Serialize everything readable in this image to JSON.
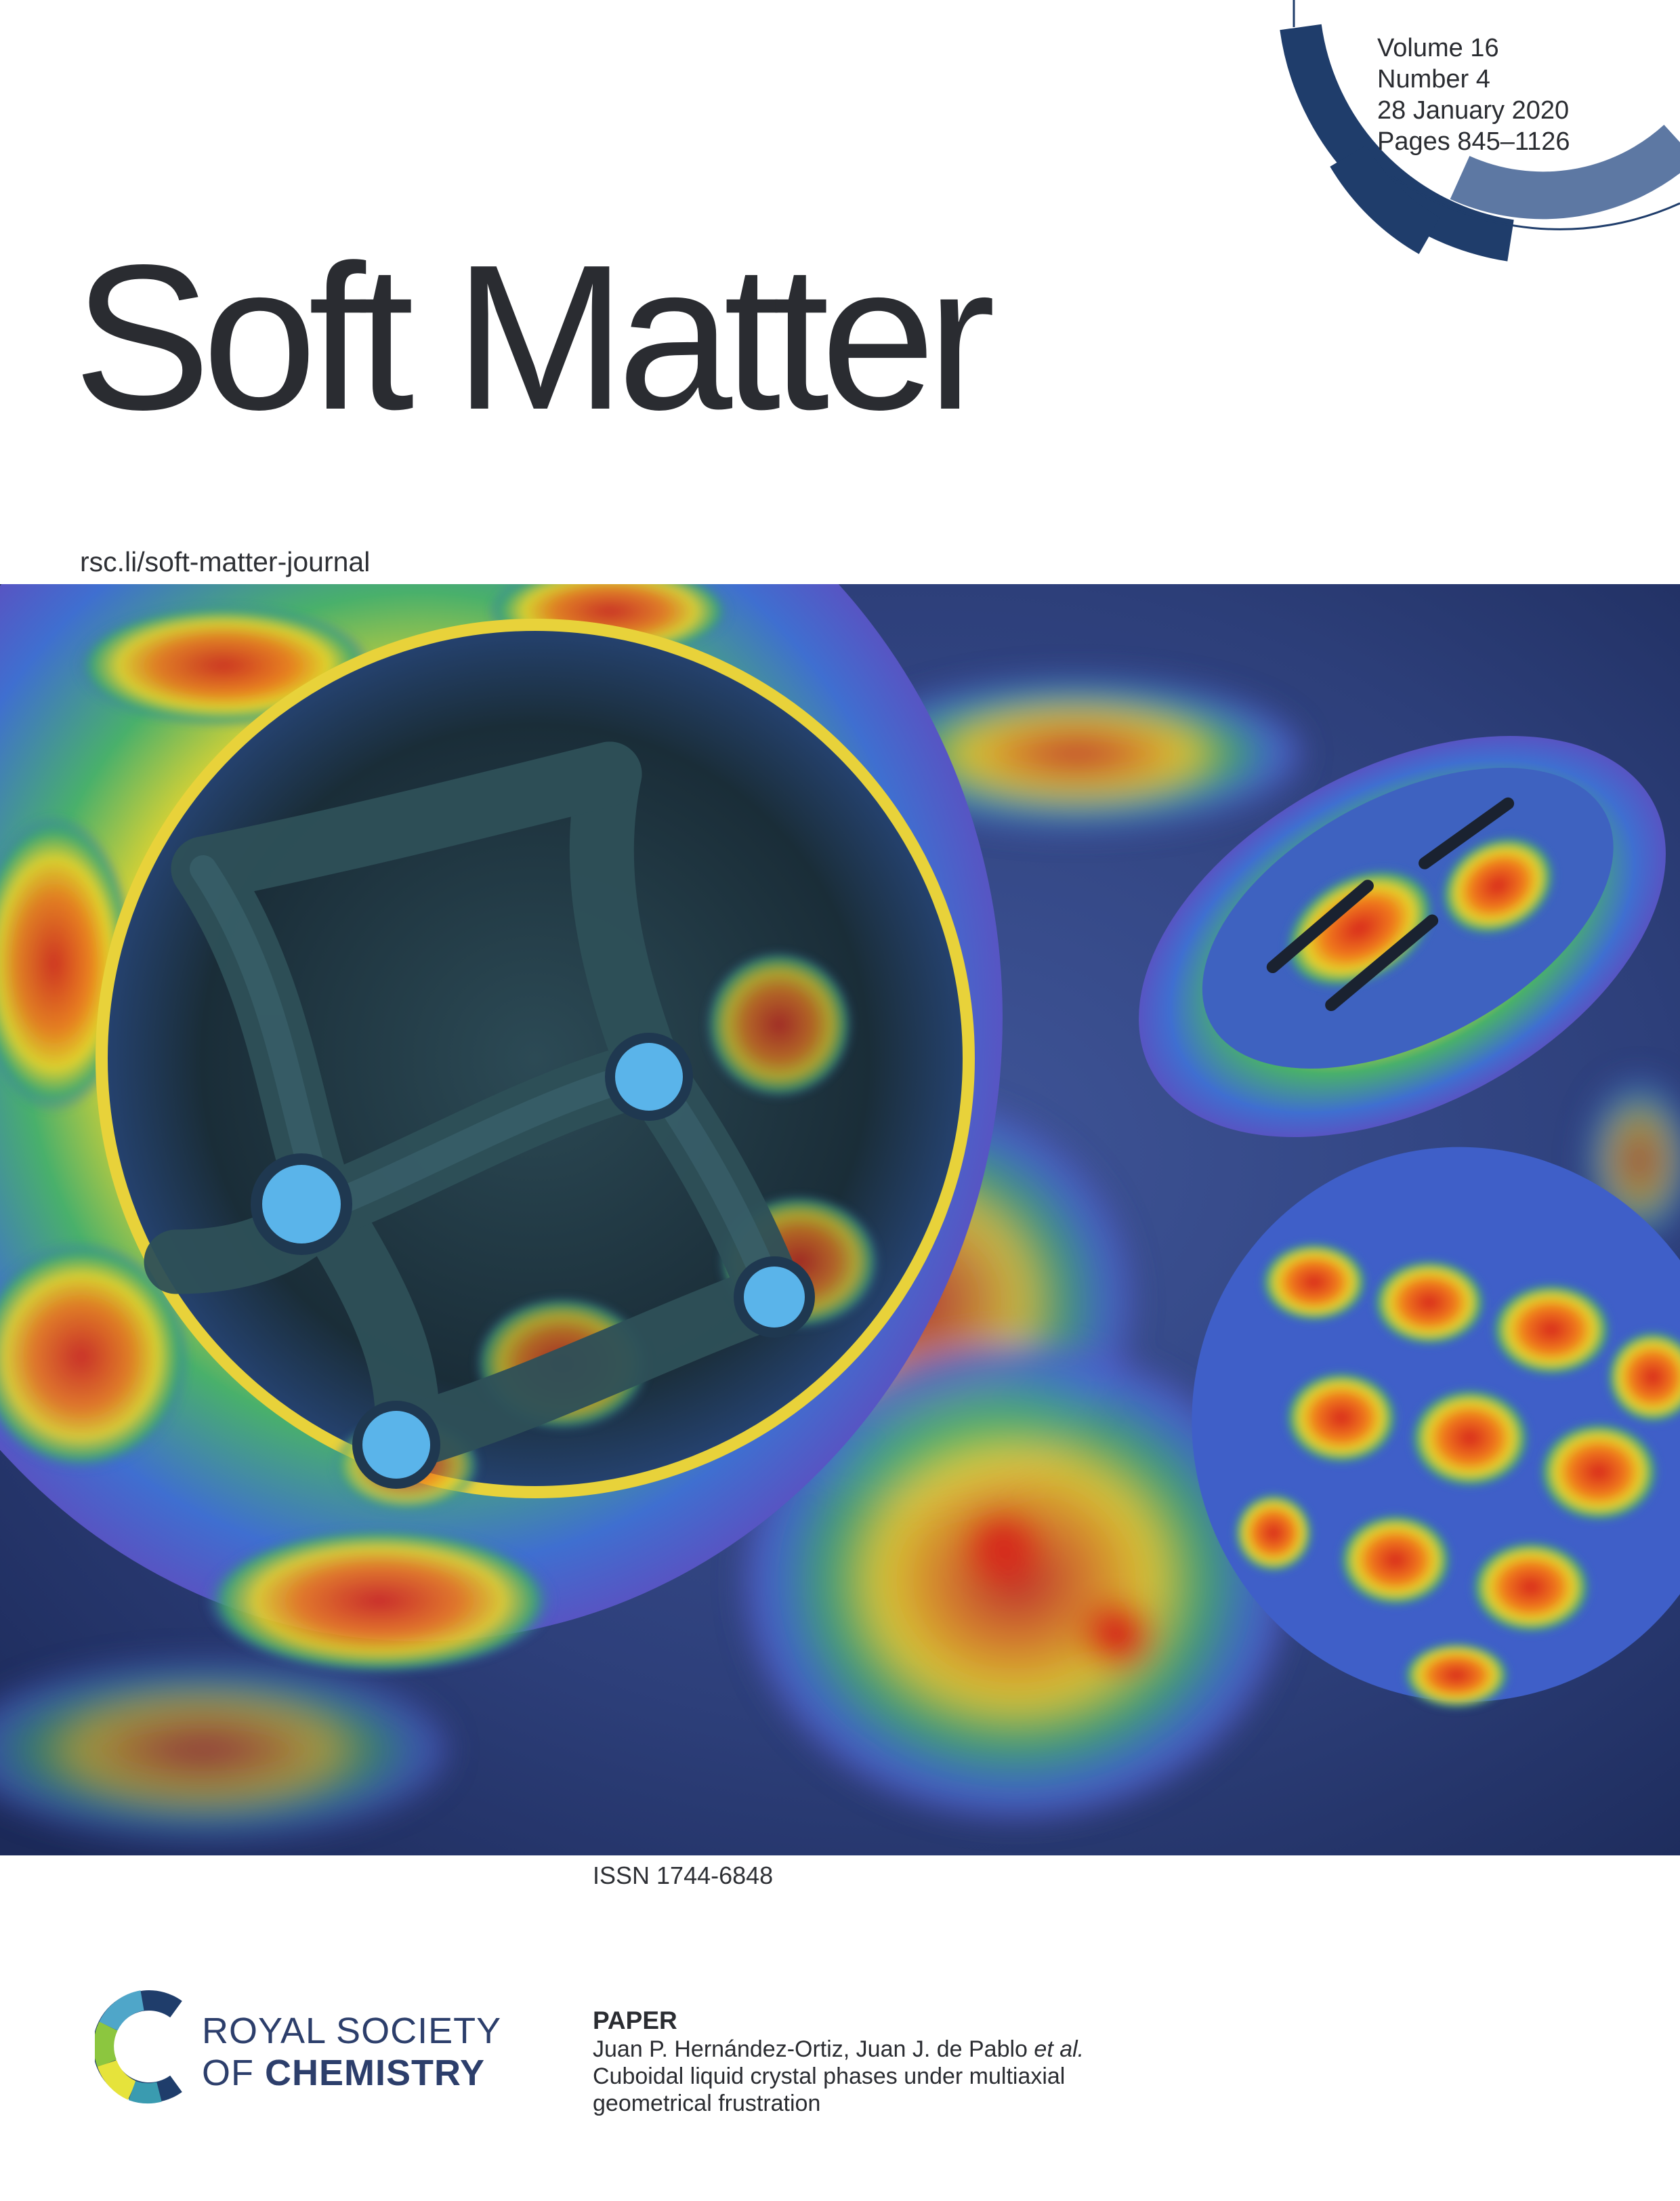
{
  "issue": {
    "volume": "Volume 16",
    "number": "Number 4",
    "date": "28 January 2020",
    "pages": "Pages 845–1126"
  },
  "journal": {
    "title": "Soft Matter",
    "url": "rsc.li/soft-matter-journal",
    "issn": "ISSN 1744-6848"
  },
  "publisher": {
    "name_line1": "ROYAL SOCIETY",
    "name_line2_prefix": "OF ",
    "name_line2_bold": "CHEMISTRY"
  },
  "paper": {
    "label": "PAPER",
    "authors": "Juan P. Hernández-Ortiz, Juan J. de Pablo",
    "authors_suffix": "et al.",
    "title_line1": "Cuboidal liquid crystal phases under multiaxial",
    "title_line2": "geometrical frustration"
  },
  "colors": {
    "navy": "#1f3d6b",
    "slate_blue": "#5d78a3",
    "background_blue": "#2e3f78",
    "text": "#2a2c31"
  }
}
